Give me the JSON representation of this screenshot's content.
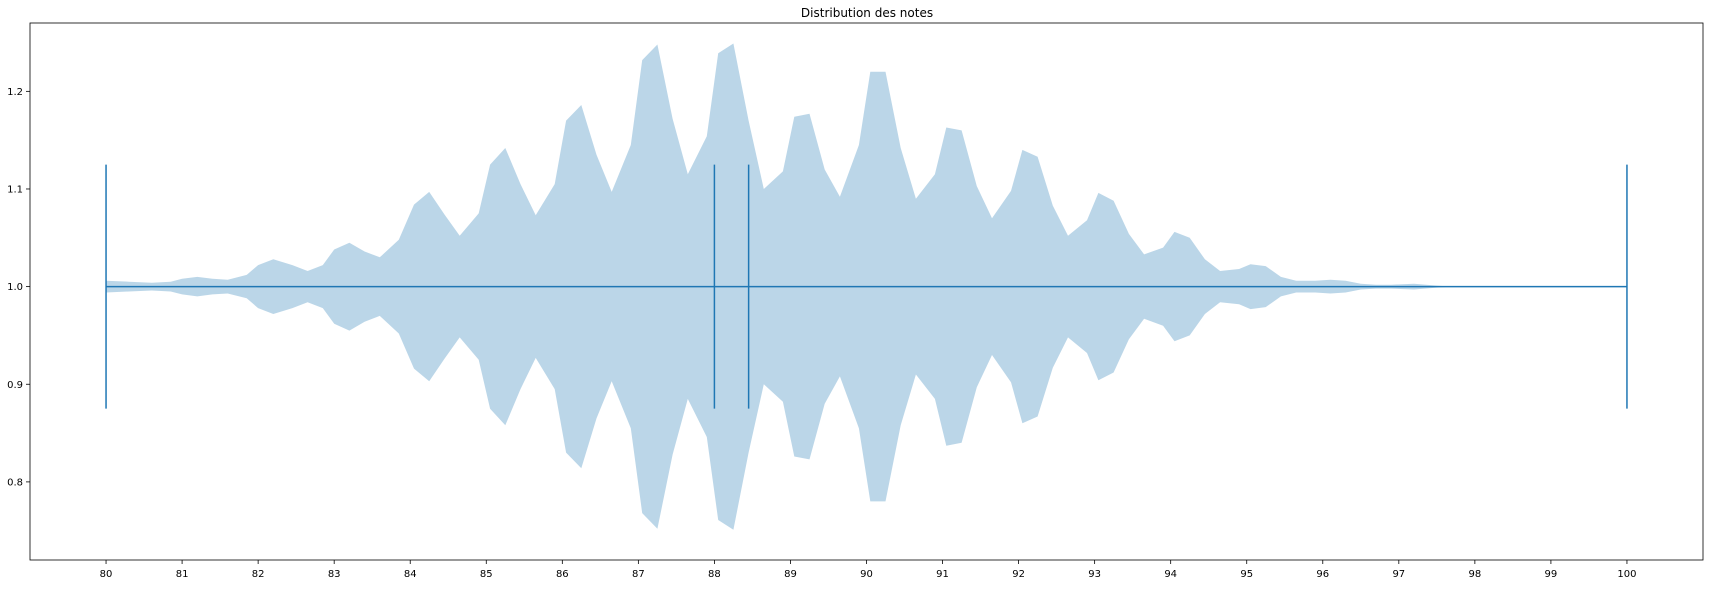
{
  "chart_data": {
    "type": "violin",
    "orientation": "horizontal",
    "title": "Distribution des notes",
    "xlabel": "",
    "ylabel": "",
    "xlim": [
      79.0,
      101.0
    ],
    "ylim": [
      0.72,
      1.27
    ],
    "x_ticks": [
      80,
      81,
      82,
      83,
      84,
      85,
      86,
      87,
      88,
      89,
      90,
      91,
      92,
      93,
      94,
      95,
      96,
      97,
      98,
      99,
      100
    ],
    "y_ticks": [
      0.8,
      0.9,
      1.0,
      1.1,
      1.2
    ],
    "y_tick_labels": [
      "0.8",
      "0.9",
      "1.0",
      "1.1",
      "1.2"
    ],
    "position": 1.0,
    "stats": {
      "min": 80,
      "max": 100,
      "mean": 88.45,
      "median": 88
    },
    "cap_halfwidth": 0.125,
    "density_profile": {
      "x": [
        80.0,
        80.3,
        80.6,
        80.85,
        81.0,
        81.2,
        81.4,
        81.6,
        81.85,
        82.0,
        82.2,
        82.45,
        82.65,
        82.85,
        83.0,
        83.2,
        83.4,
        83.6,
        83.85,
        84.05,
        84.25,
        84.45,
        84.65,
        84.9,
        85.05,
        85.25,
        85.45,
        85.65,
        85.9,
        86.05,
        86.25,
        86.45,
        86.65,
        86.9,
        87.05,
        87.25,
        87.45,
        87.65,
        87.9,
        88.05,
        88.25,
        88.45,
        88.65,
        88.9,
        89.05,
        89.25,
        89.45,
        89.65,
        89.9,
        90.05,
        90.25,
        90.45,
        90.65,
        90.9,
        91.05,
        91.25,
        91.45,
        91.65,
        91.9,
        92.05,
        92.25,
        92.45,
        92.65,
        92.9,
        93.05,
        93.25,
        93.45,
        93.65,
        93.9,
        94.05,
        94.25,
        94.45,
        94.65,
        94.9,
        95.05,
        95.25,
        95.45,
        95.65,
        95.9,
        96.1,
        96.3,
        96.5,
        96.7,
        96.9,
        97.2,
        97.5,
        97.7
      ],
      "half_width": [
        0.006,
        0.005,
        0.004,
        0.005,
        0.008,
        0.01,
        0.008,
        0.007,
        0.012,
        0.022,
        0.028,
        0.022,
        0.016,
        0.022,
        0.038,
        0.045,
        0.036,
        0.03,
        0.048,
        0.084,
        0.097,
        0.074,
        0.052,
        0.075,
        0.125,
        0.142,
        0.105,
        0.073,
        0.105,
        0.17,
        0.186,
        0.135,
        0.097,
        0.145,
        0.232,
        0.248,
        0.172,
        0.115,
        0.154,
        0.239,
        0.249,
        0.17,
        0.1,
        0.118,
        0.174,
        0.177,
        0.12,
        0.092,
        0.145,
        0.22,
        0.22,
        0.142,
        0.09,
        0.115,
        0.163,
        0.16,
        0.103,
        0.07,
        0.098,
        0.14,
        0.133,
        0.083,
        0.052,
        0.068,
        0.096,
        0.088,
        0.054,
        0.033,
        0.04,
        0.056,
        0.05,
        0.028,
        0.016,
        0.018,
        0.023,
        0.021,
        0.01,
        0.006,
        0.006,
        0.007,
        0.006,
        0.003,
        0.002,
        0.002,
        0.003,
        0.001,
        0.0
      ]
    }
  }
}
